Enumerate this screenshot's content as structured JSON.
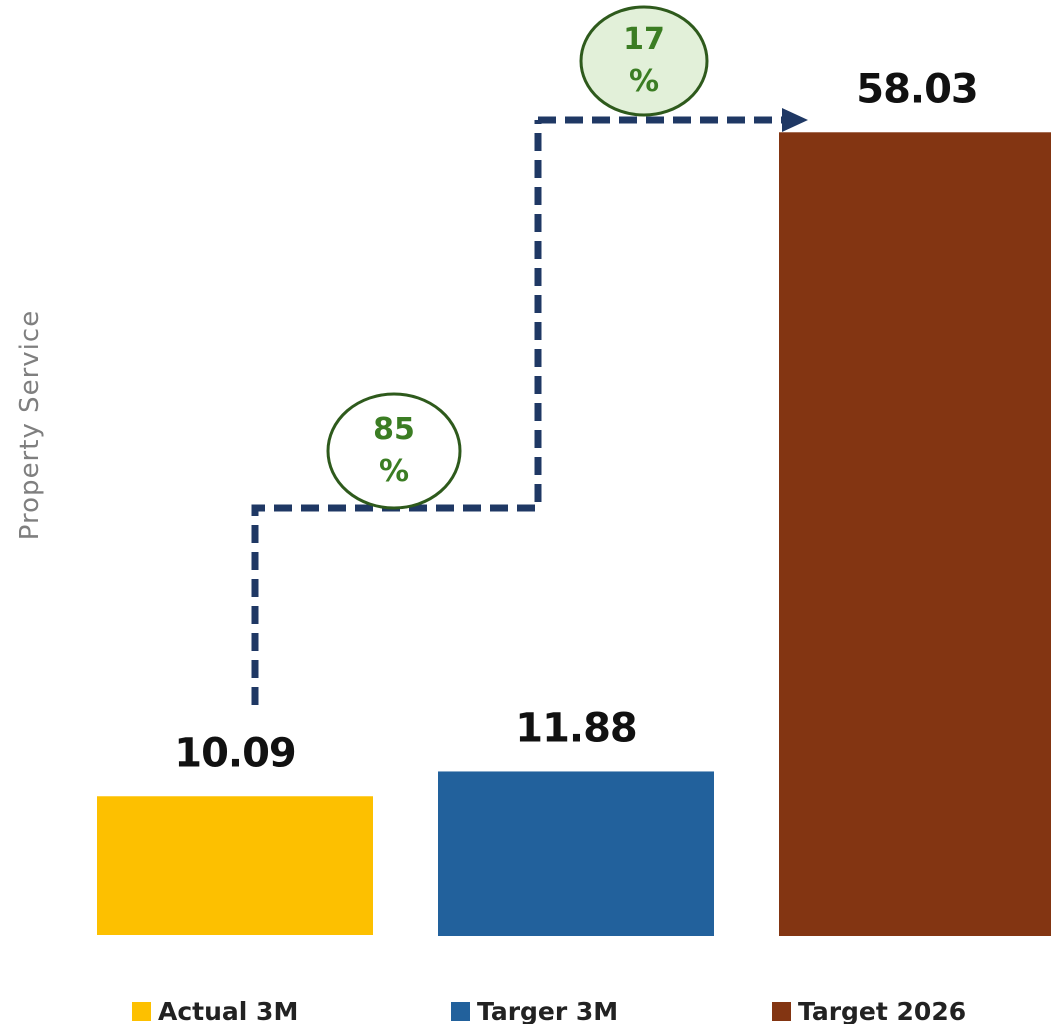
{
  "chart_data": {
    "type": "bar",
    "ylabel": "Property Service",
    "categories": [
      "Actual 3M",
      "Targer 3M",
      "Target 2026"
    ],
    "values": [
      10.09,
      11.88,
      58.03
    ],
    "value_labels": [
      "10.09",
      "11.88",
      "58.03"
    ],
    "colors": [
      "#fdc000",
      "#22619c",
      "#833512"
    ],
    "legend": {
      "placement": "bottom",
      "entries": [
        "Actual 3M",
        "Targer 3M",
        "Target 2026"
      ]
    },
    "grid": false,
    "annotations": [
      {
        "from": "Actual 3M",
        "to": "Targer 3M",
        "text_top": "85",
        "text_bottom": "%",
        "bubble_fill": "#ffffff"
      },
      {
        "from": "Targer 3M",
        "to": "Target 2026",
        "text_top": "17",
        "text_bottom": "%",
        "bubble_fill": "#e2f0d9"
      }
    ],
    "connector_color": "#1f3864",
    "bubble_stroke": "#2e5a1c",
    "bubble_text_color": "#3b7d23"
  }
}
